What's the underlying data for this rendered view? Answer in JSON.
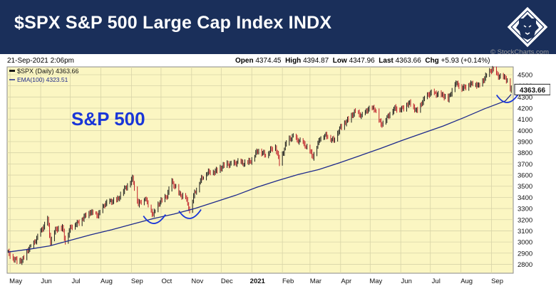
{
  "header": {
    "title": "$SPX S&P 500 Large Cap Index INDX",
    "brand_color": "#1a2f5a"
  },
  "meta": {
    "timestamp": "21-Sep-2021 2:06pm",
    "watermark": "© StockCharts.com",
    "open_label": "Open",
    "open_value": "4374.45",
    "high_label": "High",
    "high_value": "4394.87",
    "low_label": "Low",
    "low_value": "4347.96",
    "last_label": "Last",
    "last_value": "4363.66",
    "chg_label": "Chg",
    "chg_value": "+5.93 (+0.14%)"
  },
  "legend": {
    "price_label": "$SPX (Daily) 4363.66",
    "ema_label": "EMA(100) 4323.51"
  },
  "annotation": {
    "text": "S&P 500",
    "color": "#1a36d8"
  },
  "chart_data": {
    "type": "line",
    "title": "$SPX S&P 500 Large Cap Index INDX",
    "xlabel": "",
    "ylabel": "",
    "ylim": [
      2720,
      4570
    ],
    "y_ticks": [
      2800,
      2900,
      3000,
      3100,
      3200,
      3300,
      3400,
      3500,
      3600,
      3700,
      3800,
      3900,
      4000,
      4100,
      4200,
      4300,
      4400,
      4500
    ],
    "x_tick_labels": [
      "May",
      "Jun",
      "Jul",
      "Aug",
      "Sep",
      "Oct",
      "Nov",
      "Dec",
      "2021",
      "Feb",
      "Mar",
      "Apr",
      "May",
      "Jun",
      "Jul",
      "Aug",
      "Sep"
    ],
    "last_value_label": "4363.66",
    "grid": true,
    "legend_position": "top-left",
    "colors": {
      "price": "#1a1a1a",
      "ema": "#1e2a8c",
      "up": "#1a1a1a",
      "down": "#c0202a",
      "background": "#fbf6c2",
      "grid": "#d8d4a8"
    },
    "series": [
      {
        "name": "$SPX (Daily)",
        "x": [
          "2020-04-29",
          "2020-05-06",
          "2020-05-13",
          "2020-05-20",
          "2020-05-27",
          "2020-06-03",
          "2020-06-08",
          "2020-06-11",
          "2020-06-16",
          "2020-06-23",
          "2020-06-26",
          "2020-07-01",
          "2020-07-08",
          "2020-07-15",
          "2020-07-22",
          "2020-07-29",
          "2020-08-05",
          "2020-08-12",
          "2020-08-19",
          "2020-08-26",
          "2020-09-02",
          "2020-09-08",
          "2020-09-15",
          "2020-09-23",
          "2020-09-30",
          "2020-10-07",
          "2020-10-12",
          "2020-10-19",
          "2020-10-26",
          "2020-10-30",
          "2020-11-04",
          "2020-11-09",
          "2020-11-16",
          "2020-11-24",
          "2020-12-01",
          "2020-12-08",
          "2020-12-16",
          "2020-12-23",
          "2021-01-01",
          "2021-01-08",
          "2021-01-15",
          "2021-01-25",
          "2021-01-29",
          "2021-02-05",
          "2021-02-12",
          "2021-02-19",
          "2021-02-26",
          "2021-03-04",
          "2021-03-11",
          "2021-03-18",
          "2021-03-25",
          "2021-04-01",
          "2021-04-08",
          "2021-04-15",
          "2021-04-22",
          "2021-04-29",
          "2021-05-06",
          "2021-05-12",
          "2021-05-19",
          "2021-05-26",
          "2021-06-03",
          "2021-06-10",
          "2021-06-18",
          "2021-06-25",
          "2021-07-02",
          "2021-07-09",
          "2021-07-19",
          "2021-07-26",
          "2021-08-02",
          "2021-08-09",
          "2021-08-19",
          "2021-08-26",
          "2021-09-02",
          "2021-09-09",
          "2021-09-15",
          "2021-09-20",
          "2021-09-21"
        ],
        "values": [
          2900,
          2850,
          2820,
          2950,
          3010,
          3120,
          3220,
          3000,
          3100,
          3140,
          3010,
          3120,
          3170,
          3230,
          3260,
          3250,
          3330,
          3370,
          3390,
          3480,
          3580,
          3330,
          3400,
          3240,
          3360,
          3420,
          3530,
          3440,
          3400,
          3270,
          3440,
          3550,
          3610,
          3640,
          3660,
          3700,
          3710,
          3700,
          3740,
          3820,
          3790,
          3850,
          3720,
          3890,
          3940,
          3910,
          3840,
          3770,
          3930,
          3950,
          3920,
          4020,
          4100,
          4160,
          4130,
          4200,
          4180,
          4060,
          4120,
          4200,
          4200,
          4240,
          4180,
          4280,
          4350,
          4320,
          4290,
          4420,
          4380,
          4420,
          4400,
          4490,
          4540,
          4490,
          4470,
          4360,
          4363.66
        ]
      },
      {
        "name": "EMA(100)",
        "x": [
          "2020-04-29",
          "2020-05-20",
          "2020-06-10",
          "2020-07-01",
          "2020-07-22",
          "2020-08-12",
          "2020-09-02",
          "2020-09-23",
          "2020-10-14",
          "2020-11-04",
          "2020-11-25",
          "2020-12-16",
          "2021-01-06",
          "2021-01-27",
          "2021-02-17",
          "2021-03-10",
          "2021-03-31",
          "2021-04-21",
          "2021-05-12",
          "2021-06-02",
          "2021-06-23",
          "2021-07-14",
          "2021-08-04",
          "2021-08-25",
          "2021-09-15",
          "2021-09-21"
        ],
        "values": [
          2910,
          2935,
          2965,
          3015,
          3065,
          3110,
          3160,
          3210,
          3250,
          3300,
          3360,
          3420,
          3490,
          3550,
          3605,
          3650,
          3710,
          3775,
          3840,
          3910,
          3975,
          4040,
          4115,
          4195,
          4265,
          4323.51
        ]
      }
    ]
  }
}
